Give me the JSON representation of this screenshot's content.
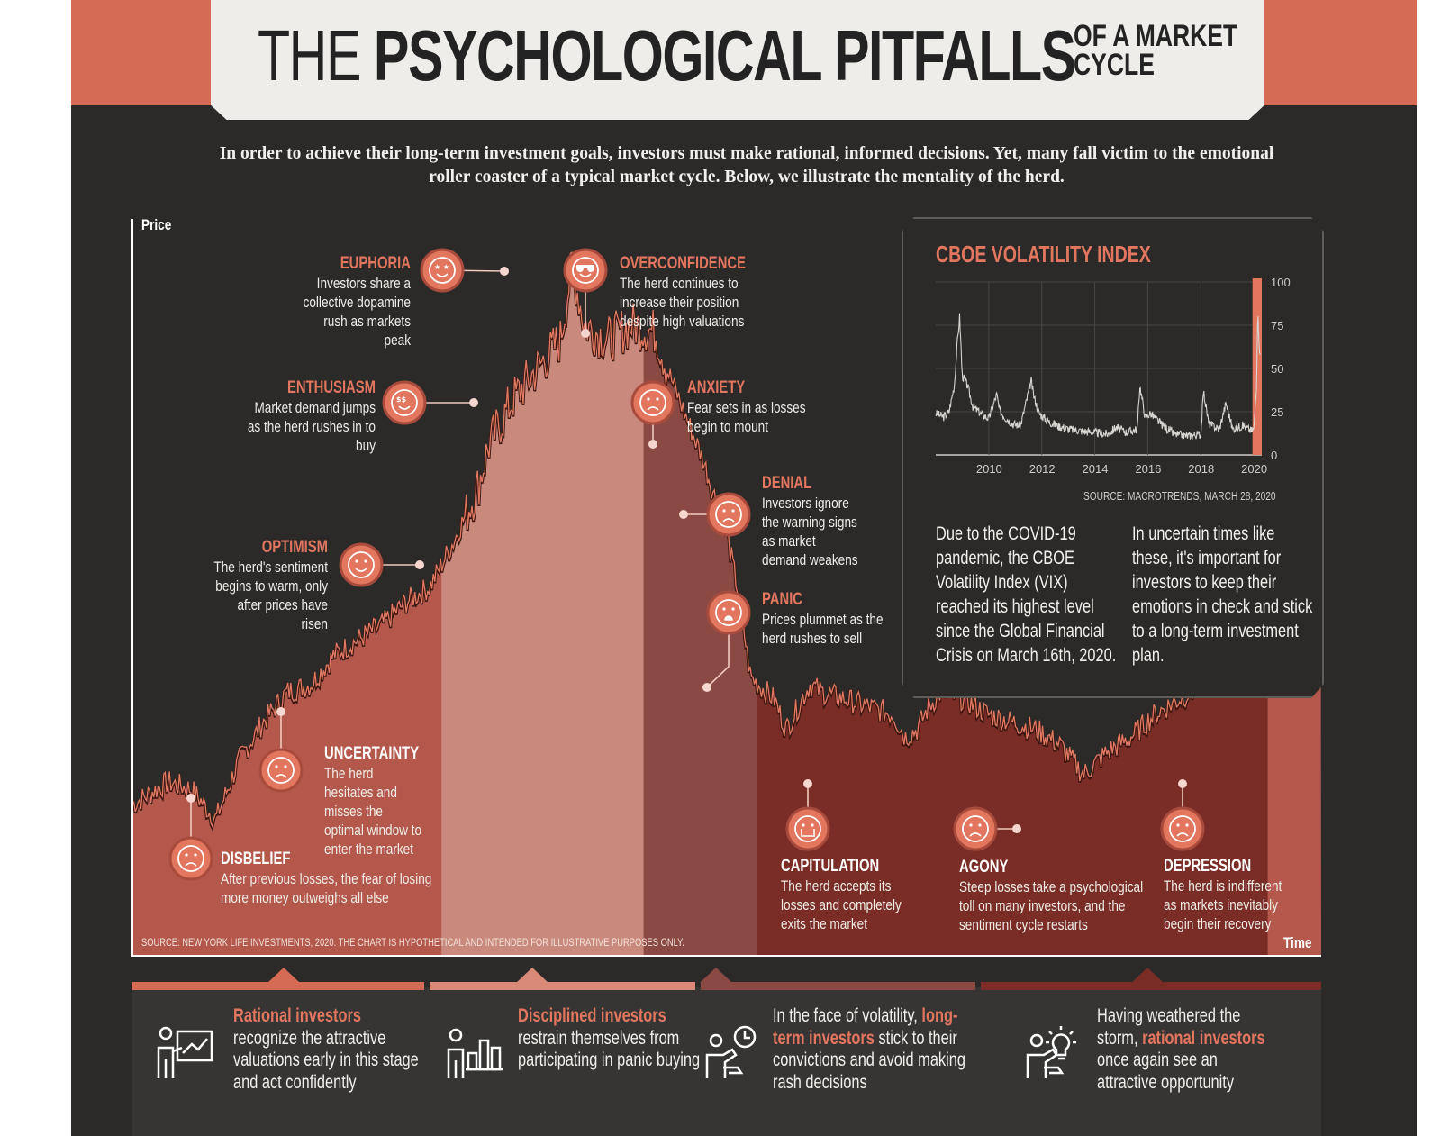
{
  "header": {
    "title_light": "THE",
    "title_bold": "PSYCHOLOGICAL PITFALLS",
    "title_small_1": "OF A MARKET",
    "title_small_2": "CYCLE"
  },
  "intro": "In order to achieve their long-term investment goals, investors must make rational, informed decisions. Yet, many fall victim to the emotional roller coaster of a typical market cycle. Below, we illustrate the mentality of the herd.",
  "colors": {
    "background": "#2b2a29",
    "accent": "#e3765f",
    "band": "#d56a55",
    "zone_1": "#b3584a",
    "zone_2": "#c98a7d",
    "zone_3": "#8a4a43",
    "zone_4": "#7a2d26",
    "zone_5": "#b3584a"
  },
  "chart_data": [
    {
      "type": "area",
      "title": "",
      "xlabel": "Time",
      "ylabel": "Price",
      "source": "SOURCE: NEW YORK LIFE INVESTMENTS, 2020. THE CHART IS HYPOTHETICAL AND INTENDED FOR ILLUSTRATIVE PURPOSES ONLY.",
      "hypothetical": true,
      "x": [
        0,
        3,
        5,
        7,
        9,
        11,
        13,
        15,
        17,
        19,
        21,
        23,
        25,
        27,
        29,
        30,
        32,
        34,
        36,
        37,
        38,
        40,
        42,
        44,
        45,
        46,
        48,
        50,
        51,
        52,
        54,
        55,
        56,
        57,
        58,
        60,
        62,
        64,
        65,
        66,
        67,
        68,
        70,
        72,
        74,
        76,
        78,
        80,
        82,
        84,
        86,
        88,
        90,
        92,
        94,
        95,
        97,
        100
      ],
      "y": [
        20,
        23,
        22,
        18,
        26,
        31,
        35,
        36,
        40,
        42,
        44,
        47,
        49,
        55,
        62,
        68,
        74,
        78,
        82,
        92,
        84,
        82,
        84,
        83,
        78,
        74,
        66,
        56,
        48,
        37,
        34,
        30,
        33,
        36,
        35,
        34,
        33,
        32,
        29,
        30,
        33,
        35,
        34,
        32,
        31,
        30,
        28,
        24,
        27,
        29,
        32,
        34,
        36,
        39,
        42,
        44,
        45,
        47
      ],
      "phases": [
        {
          "name": "DISBELIEF",
          "x": 5,
          "description": "After previous losses, the fear of losing more money outweighs all else"
        },
        {
          "name": "UNCERTAINTY",
          "x": 13,
          "description": "The herd hesitates and misses the optimal window to enter the market"
        },
        {
          "name": "OPTIMISM",
          "x": 24.5,
          "description": "The herd's sentiment begins to warm, only after prices have risen"
        },
        {
          "name": "ENTHUSIASM",
          "x": 29,
          "description": "Market demand jumps as the herd rushes in to buy"
        },
        {
          "name": "EUPHORIA",
          "x": 31.5,
          "description": "Investors share a collective dopamine rush as markets peak"
        },
        {
          "name": "OVERCONFIDENCE",
          "x": 38,
          "description": "The herd continues to increase their position despite high valuations"
        },
        {
          "name": "ANXIETY",
          "x": 44,
          "description": "Fear sets in as losses begin to mount"
        },
        {
          "name": "DENIAL",
          "x": 46,
          "description": "Investors ignore the warning signs as market demand weakens"
        },
        {
          "name": "PANIC",
          "x": 48,
          "description": "Prices plummet as the herd rushes to sell"
        },
        {
          "name": "CAPITULATION",
          "x": 57,
          "description": "The herd accepts its losses and completely exits the market"
        },
        {
          "name": "AGONY",
          "x": 74,
          "description": "Steep losses take a psychological toll on many investors, and the sentiment cycle restarts"
        },
        {
          "name": "DEPRESSION",
          "x": 88,
          "description": "The herd is indifferent as markets inevitably begin their recovery"
        }
      ],
      "zones": [
        {
          "from": 0,
          "to": 26
        },
        {
          "from": 26,
          "to": 43
        },
        {
          "from": 43,
          "to": 52.5
        },
        {
          "from": 52.5,
          "to": 95.5
        },
        {
          "from": 95.5,
          "to": 100
        }
      ]
    },
    {
      "type": "line",
      "title": "CBOE VOLATILITY INDEX",
      "xlabel": "",
      "ylabel": "",
      "ylim": [
        0,
        100
      ],
      "yticks": [
        0,
        25,
        50,
        75,
        100
      ],
      "xticks": [
        "2010",
        "2012",
        "2014",
        "2016",
        "2018",
        "2020"
      ],
      "xlim": [
        2008,
        2020.3
      ],
      "x": [
        2008.0,
        2008.3,
        2008.5,
        2008.7,
        2008.8,
        2008.9,
        2009.0,
        2009.2,
        2009.4,
        2009.7,
        2010.0,
        2010.3,
        2010.4,
        2010.6,
        2010.9,
        2011.2,
        2011.6,
        2011.7,
        2011.9,
        2012.3,
        2012.6,
        2013.0,
        2013.5,
        2014.0,
        2014.5,
        2014.8,
        2015.2,
        2015.6,
        2015.7,
        2015.9,
        2016.1,
        2016.5,
        2017.0,
        2017.5,
        2018.0,
        2018.1,
        2018.3,
        2018.7,
        2018.95,
        2019.2,
        2019.6,
        2019.9,
        2020.0,
        2020.1,
        2020.15,
        2020.2,
        2020.25
      ],
      "y": [
        24,
        22,
        25,
        40,
        62,
        80,
        46,
        40,
        28,
        24,
        21,
        35,
        26,
        22,
        18,
        17,
        43,
        34,
        24,
        19,
        17,
        15,
        14,
        13,
        12,
        16,
        13,
        15,
        40,
        22,
        24,
        18,
        12,
        11,
        12,
        37,
        18,
        15,
        30,
        15,
        17,
        14,
        15,
        40,
        82,
        65,
        55
      ],
      "source": "SOURCE: MACROTRENDS, MARCH 28, 2020"
    }
  ],
  "vix_text": {
    "left": "Due to the COVID-19 pandemic, the CBOE Volatility Index (VIX) reached its highest level since the Global Financial Crisis on March 16th, 2020.",
    "right": "In uncertain times like these, it's important for investors to keep their emotions in check and stick to a long-term investment plan."
  },
  "bottom": {
    "s1_hl": "Rational investors",
    "s1_rest": "recognize the attractive valuations early in this stage and act confidently",
    "s2_hl": "Disciplined investors",
    "s2_rest": "restrain themselves from participating in panic buying",
    "s3_pre": "In the face of volatility,",
    "s3_hl": "long-term investors",
    "s3_rest": "stick to their convictions and avoid making rash decisions",
    "s4_pre": "Having weathered the storm,",
    "s4_hl": "rational investors",
    "s4_rest": "once again see an attractive opportunity"
  },
  "icons": [
    "frown-face-icon",
    "worried-face-icon",
    "smile-face-icon",
    "dollar-eyes-face-icon",
    "star-eyes-face-icon",
    "sunglasses-face-icon",
    "anxious-face-icon",
    "annoyed-face-icon",
    "scared-face-icon",
    "crying-face-icon",
    "agony-face-icon",
    "sad-face-icon",
    "presenter-chart-icon",
    "person-bar-chart-icon",
    "person-clock-icon",
    "person-lightbulb-icon"
  ]
}
